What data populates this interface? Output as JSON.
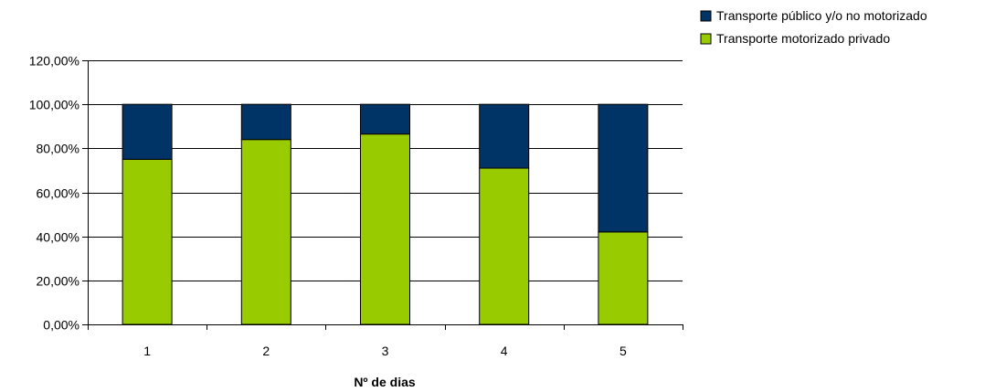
{
  "chart_data": {
    "type": "bar",
    "stacked": true,
    "title": "",
    "xlabel": "Nº de dias",
    "ylabel": "",
    "categories": [
      "1",
      "2",
      "3",
      "4",
      "5"
    ],
    "ylim": [
      0,
      1.2
    ],
    "yticks": [
      {
        "value": 0,
        "label": "0,00%"
      },
      {
        "value": 0.2,
        "label": "20,00%"
      },
      {
        "value": 0.4,
        "label": "40,00%"
      },
      {
        "value": 0.6,
        "label": "60,00%"
      },
      {
        "value": 0.8,
        "label": "80,00%"
      },
      {
        "value": 1.0,
        "label": "100,00%"
      },
      {
        "value": 1.2,
        "label": "120,00%"
      }
    ],
    "grid": true,
    "legend_position": "top-right",
    "series": [
      {
        "name": "Transporte motorizado privado",
        "color": "#99cc00",
        "values": [
          0.75,
          0.84,
          0.865,
          0.71,
          0.42
        ]
      },
      {
        "name": "Transporte público y/o no motorizado",
        "color": "#003366",
        "values": [
          0.25,
          0.16,
          0.135,
          0.29,
          0.58
        ]
      }
    ],
    "legend_order": [
      1,
      0
    ]
  }
}
